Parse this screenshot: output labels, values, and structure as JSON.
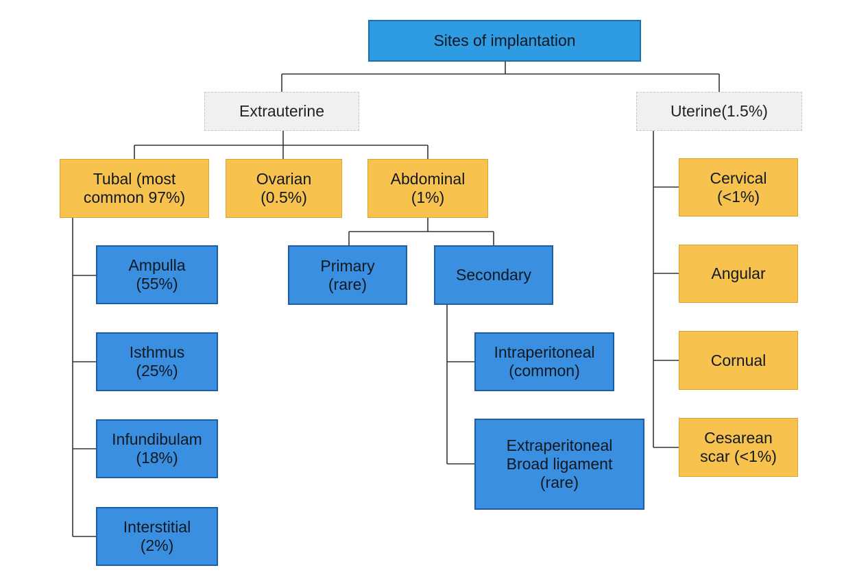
{
  "root": "Sites of implantation",
  "extrauterine": {
    "label": "Extrauterine",
    "tubal": "Tubal (most\ncommon 97%)",
    "tubal_sites": [
      "Ampulla\n(55%)",
      "Isthmus\n(25%)",
      "Infundibulam\n(18%)",
      "Interstitial\n(2%)"
    ],
    "ovarian": "Ovarian\n(0.5%)",
    "abdominal": "Abdominal\n(1%)",
    "primary": "Primary\n(rare)",
    "secondary": "Secondary",
    "secondary_sites": [
      "Intraperitoneal\n(common)",
      "Extraperitoneal\nBroad ligament\n(rare)"
    ]
  },
  "uterine": {
    "label": "Uterine(1.5%)",
    "sites": [
      "Cervical\n(<1%)",
      "Angular",
      "Cornual",
      "Cesarean\nscar (<1%)"
    ]
  },
  "colors": {
    "root": "#2f9be3",
    "category": "#eef0f2",
    "group": "#f7c24d",
    "site": "#3a8fe0",
    "connector": "#333333"
  }
}
